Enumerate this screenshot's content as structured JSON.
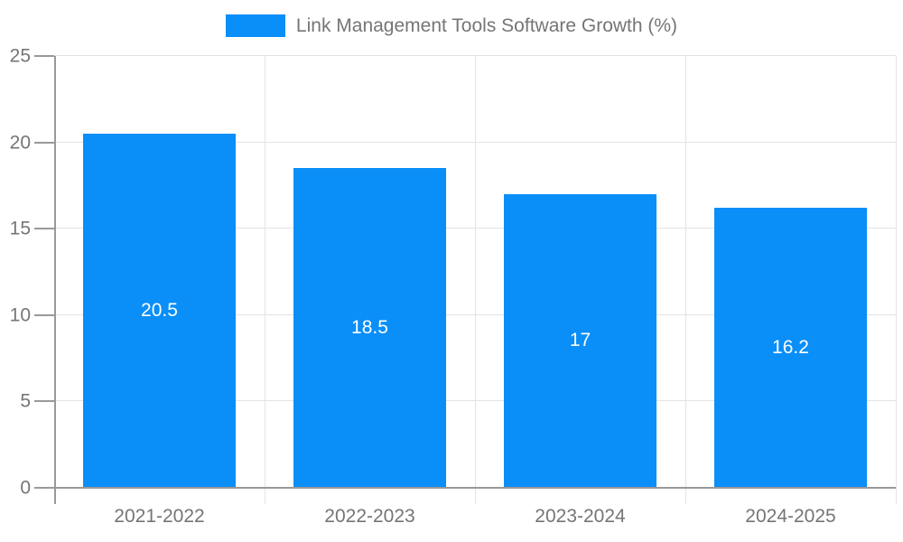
{
  "colors": {
    "bar": "#0a8ef8",
    "axis": "#999999",
    "grid": "#e3e3e3",
    "tick_text": "#757575",
    "value_text": "#ffffff",
    "background": "#ffffff"
  },
  "legend": {
    "label": "Link Management Tools Software Growth (%)",
    "position": "top-center",
    "swatch_icon": "legend-swatch"
  },
  "chart_data": {
    "type": "bar",
    "title": "Link Management Tools Software Growth (%)",
    "categories": [
      "2021-2022",
      "2022-2023",
      "2023-2024",
      "2024-2025"
    ],
    "series": [
      {
        "name": "Link Management Tools Software Growth (%)",
        "values": [
          20.5,
          18.5,
          17,
          16.2
        ]
      }
    ],
    "value_labels": [
      "20.5",
      "18.5",
      "17",
      "16.2"
    ],
    "value_label_position": "inside-center",
    "xlabel": "",
    "ylabel": "",
    "ylim": [
      0,
      25
    ],
    "yticks": [
      0,
      5,
      10,
      15,
      20,
      25
    ],
    "grid": "on",
    "legend_position": "top"
  }
}
